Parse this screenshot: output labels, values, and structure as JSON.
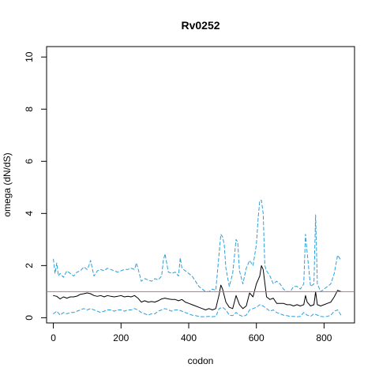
{
  "chart_data": {
    "type": "line",
    "title": "Rv0252",
    "xlabel": "codon",
    "ylabel": "omega (dN/dS)",
    "xlim": [
      -20,
      890
    ],
    "ylim": [
      -0.2,
      10.4
    ],
    "xticks": [
      0,
      200,
      400,
      600,
      800
    ],
    "yticks": [
      0,
      2,
      4,
      6,
      8,
      10
    ],
    "grid": false,
    "reference_line": {
      "y": 1.0,
      "color": "#d0659a"
    },
    "series": [
      {
        "style": "solid",
        "color": "#000000",
        "x": [
          0,
          10,
          20,
          30,
          40,
          50,
          60,
          70,
          80,
          90,
          100,
          110,
          120,
          130,
          140,
          150,
          160,
          170,
          180,
          190,
          200,
          210,
          220,
          230,
          240,
          250,
          260,
          270,
          280,
          290,
          300,
          310,
          320,
          330,
          340,
          350,
          360,
          370,
          380,
          390,
          400,
          410,
          420,
          430,
          440,
          450,
          460,
          470,
          480,
          490,
          495,
          500,
          510,
          520,
          530,
          540,
          550,
          560,
          570,
          580,
          590,
          600,
          610,
          615,
          620,
          630,
          640,
          650,
          660,
          670,
          680,
          690,
          700,
          710,
          720,
          730,
          740,
          745,
          750,
          760,
          770,
          775,
          780,
          790,
          800,
          810,
          820,
          830,
          840,
          850
        ],
        "y": [
          0.85,
          0.82,
          0.72,
          0.8,
          0.75,
          0.8,
          0.8,
          0.83,
          0.9,
          0.92,
          0.95,
          0.92,
          0.85,
          0.82,
          0.85,
          0.8,
          0.85,
          0.82,
          0.8,
          0.82,
          0.85,
          0.8,
          0.82,
          0.8,
          0.85,
          0.75,
          0.6,
          0.65,
          0.6,
          0.62,
          0.6,
          0.65,
          0.72,
          0.75,
          0.72,
          0.7,
          0.7,
          0.65,
          0.7,
          0.6,
          0.55,
          0.5,
          0.45,
          0.4,
          0.35,
          0.3,
          0.35,
          0.3,
          0.35,
          0.9,
          1.25,
          1.1,
          0.6,
          0.4,
          0.35,
          0.85,
          0.5,
          0.35,
          0.45,
          0.95,
          0.8,
          1.3,
          1.6,
          2.0,
          1.85,
          0.8,
          0.7,
          0.75,
          0.55,
          0.55,
          0.55,
          0.5,
          0.5,
          0.45,
          0.5,
          0.45,
          0.5,
          0.85,
          0.6,
          0.45,
          0.5,
          1.0,
          0.5,
          0.45,
          0.5,
          0.55,
          0.6,
          0.8,
          1.05,
          1.0
        ]
      },
      {
        "style": "dashed",
        "color": "#2b9fdc",
        "x": [
          0,
          5,
          10,
          15,
          20,
          30,
          40,
          50,
          60,
          70,
          80,
          90,
          100,
          105,
          110,
          120,
          130,
          140,
          150,
          160,
          170,
          180,
          190,
          200,
          210,
          220,
          230,
          240,
          245,
          250,
          260,
          270,
          280,
          290,
          300,
          310,
          320,
          325,
          330,
          335,
          340,
          350,
          360,
          370,
          375,
          380,
          390,
          400,
          410,
          420,
          430,
          440,
          450,
          460,
          470,
          480,
          490,
          495,
          500,
          505,
          510,
          520,
          530,
          540,
          545,
          550,
          560,
          570,
          580,
          590,
          600,
          605,
          610,
          615,
          620,
          625,
          630,
          640,
          650,
          660,
          670,
          680,
          690,
          700,
          710,
          720,
          730,
          740,
          745,
          750,
          760,
          770,
          775,
          780,
          790,
          800,
          810,
          820,
          830,
          840,
          850
        ],
        "y": [
          2.25,
          1.7,
          2.1,
          1.6,
          1.7,
          1.55,
          1.8,
          1.7,
          1.6,
          1.75,
          1.8,
          1.95,
          1.85,
          2.0,
          2.2,
          1.6,
          1.8,
          1.85,
          1.8,
          1.9,
          1.85,
          1.8,
          1.75,
          1.8,
          1.85,
          1.85,
          1.9,
          1.85,
          2.1,
          1.9,
          1.4,
          1.5,
          1.45,
          1.4,
          1.5,
          1.45,
          1.6,
          2.2,
          2.45,
          2.1,
          1.75,
          1.7,
          1.75,
          1.6,
          2.3,
          1.9,
          1.8,
          1.7,
          1.6,
          1.4,
          1.2,
          1.1,
          1.0,
          1.0,
          1.1,
          1.05,
          2.5,
          3.2,
          3.1,
          2.8,
          1.9,
          1.2,
          1.7,
          3.0,
          2.9,
          1.8,
          1.3,
          1.9,
          2.2,
          2.0,
          2.8,
          3.8,
          4.5,
          4.5,
          4.0,
          2.0,
          1.8,
          1.6,
          1.3,
          1.4,
          1.3,
          1.1,
          1.0,
          1.0,
          1.2,
          1.2,
          1.1,
          1.3,
          3.2,
          2.5,
          1.2,
          1.3,
          3.95,
          1.3,
          1.0,
          1.1,
          1.2,
          1.3,
          1.7,
          2.4,
          2.2
        ]
      },
      {
        "style": "dashed",
        "color": "#2b9fdc",
        "x": [
          0,
          10,
          20,
          30,
          40,
          50,
          60,
          70,
          80,
          90,
          100,
          110,
          120,
          130,
          140,
          150,
          160,
          170,
          180,
          190,
          200,
          210,
          220,
          230,
          240,
          250,
          260,
          270,
          280,
          290,
          300,
          310,
          320,
          330,
          340,
          350,
          360,
          370,
          380,
          390,
          400,
          410,
          420,
          430,
          440,
          450,
          460,
          470,
          480,
          490,
          500,
          510,
          520,
          530,
          540,
          550,
          560,
          570,
          580,
          590,
          600,
          610,
          620,
          630,
          640,
          650,
          660,
          670,
          680,
          690,
          700,
          710,
          720,
          730,
          740,
          750,
          760,
          770,
          780,
          790,
          800,
          810,
          820,
          830,
          840,
          850
        ],
        "y": [
          0.15,
          0.25,
          0.1,
          0.2,
          0.15,
          0.2,
          0.2,
          0.25,
          0.3,
          0.35,
          0.3,
          0.35,
          0.3,
          0.25,
          0.2,
          0.25,
          0.3,
          0.3,
          0.25,
          0.3,
          0.3,
          0.25,
          0.3,
          0.3,
          0.35,
          0.3,
          0.2,
          0.15,
          0.1,
          0.15,
          0.15,
          0.25,
          0.3,
          0.35,
          0.3,
          0.25,
          0.3,
          0.3,
          0.25,
          0.2,
          0.15,
          0.1,
          0.08,
          0.05,
          0.04,
          0.04,
          0.05,
          0.04,
          0.05,
          0.35,
          0.4,
          0.3,
          0.1,
          0.08,
          0.2,
          0.1,
          0.05,
          0.1,
          0.3,
          0.35,
          0.4,
          0.5,
          0.45,
          0.35,
          0.25,
          0.3,
          0.2,
          0.15,
          0.1,
          0.08,
          0.05,
          0.05,
          0.04,
          0.05,
          0.2,
          0.1,
          0.05,
          0.15,
          0.1,
          0.05,
          0.04,
          0.05,
          0.1,
          0.25,
          0.3,
          0.1
        ]
      }
    ]
  }
}
